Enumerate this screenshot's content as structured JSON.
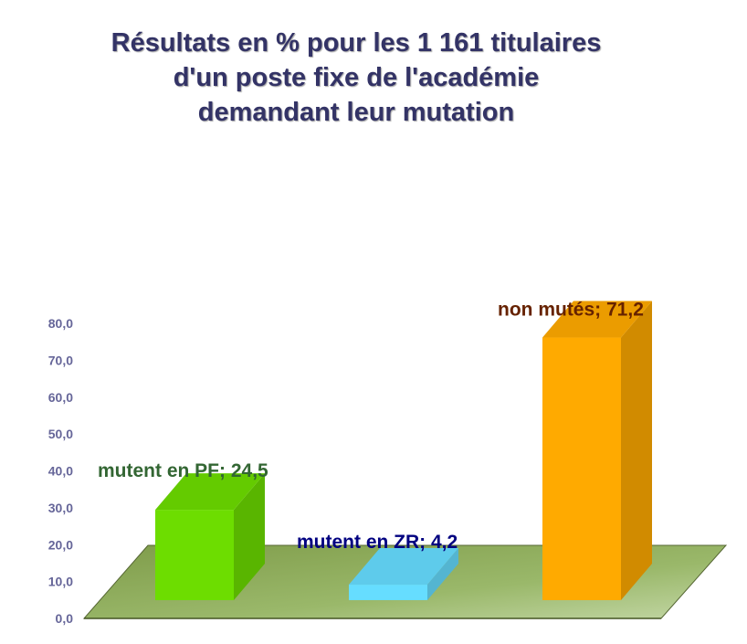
{
  "title_lines": [
    "Résultats en % pour les 1 161 titulaires",
    "d'un poste fixe de l'académie",
    "demandant leur mutation"
  ],
  "chart_data": {
    "type": "bar",
    "title": "Résultats en % pour les 1 161 titulaires d'un poste fixe de l'académie demandant leur mutation",
    "categories": [
      "mutent en PF",
      "mutent en ZR",
      "non mutés"
    ],
    "values": [
      24.5,
      4.2,
      71.2
    ],
    "data_labels": [
      "mutent en PF; 24,5",
      "mutent en ZR; 4,2",
      "non mutés; 71,2"
    ],
    "ylim": [
      0,
      80
    ],
    "yticks": [
      "0,0",
      "10,0",
      "20,0",
      "30,0",
      "40,0",
      "50,0",
      "60,0",
      "70,0",
      "80,0"
    ],
    "xlabel": "",
    "ylabel": "",
    "grid": false,
    "legend": "none",
    "colors": {
      "bars": [
        "#6ddd00",
        "#66ddff",
        "#ffaa00"
      ],
      "labels": [
        "#336633",
        "#000080",
        "#662200"
      ],
      "floor": "#8eaa5e"
    }
  }
}
